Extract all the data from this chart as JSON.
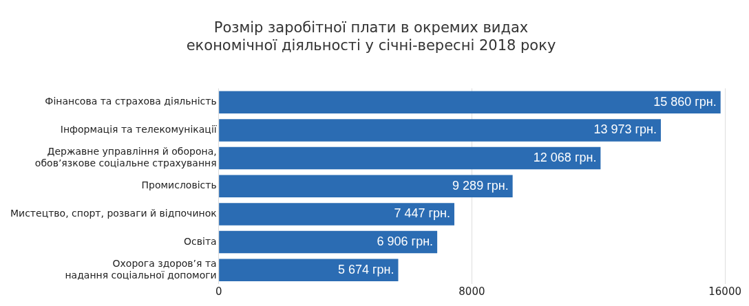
{
  "chart_data": {
    "type": "bar",
    "orientation": "horizontal",
    "title": "Розмір заробітної плати в окремих видах\nекономічної діяльності у січні-вересні 2018 року",
    "categories": [
      "Фінансова та страхова діяльність",
      "Інформація та телекомунікації",
      "Державне управління й оборона,\nобов’язкове соціальне страхування",
      "Промисловість",
      "Мистецтво, спорт, розваги й відпочинок",
      "Освіта",
      "Охорога здоров’я та\nнадання соціальної допомоги"
    ],
    "values": [
      15860,
      13973,
      12068,
      9289,
      7447,
      6906,
      5674
    ],
    "value_labels": [
      "15 860 грн.",
      "13 973 грн.",
      "12 068 грн.",
      "9 289 грн.",
      "7 447 грн.",
      "6 906 грн.",
      "5 674 грн."
    ],
    "color": "#2b6cb3",
    "xlim": [
      0,
      16000
    ],
    "xticks": [
      0,
      8000,
      16000
    ],
    "grid": "x",
    "legend": false
  }
}
